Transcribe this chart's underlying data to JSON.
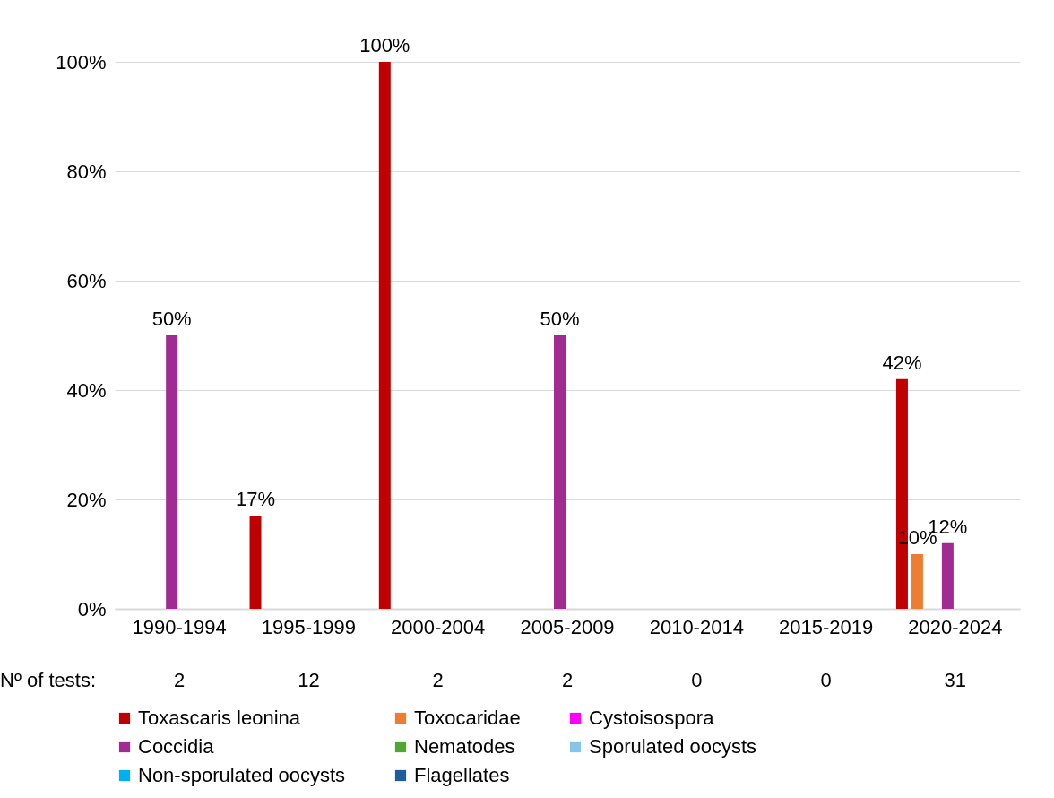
{
  "chart_data": {
    "type": "bar",
    "categories": [
      "1990-1994",
      "1995-1999",
      "2000-2004",
      "2005-2009",
      "2010-2014",
      "2015-2019",
      "2020-2024"
    ],
    "series": [
      {
        "name": "Toxascaris leonina",
        "color": "#c00000",
        "values": [
          null,
          17,
          100,
          null,
          null,
          null,
          42
        ]
      },
      {
        "name": "Toxocaridae",
        "color": "#ed7d31",
        "values": [
          null,
          null,
          null,
          null,
          null,
          null,
          10
        ]
      },
      {
        "name": "Cystoisospora",
        "color": "#ff00ff",
        "values": [
          null,
          null,
          null,
          null,
          null,
          null,
          null
        ]
      },
      {
        "name": "Coccidia",
        "color": "#a02b93",
        "values": [
          50,
          null,
          null,
          50,
          null,
          null,
          12
        ]
      },
      {
        "name": "Nematodes",
        "color": "#4ea72e",
        "values": [
          null,
          null,
          null,
          null,
          null,
          null,
          null
        ]
      },
      {
        "name": "Sporulated oocysts",
        "color": "#85c6e8",
        "values": [
          null,
          null,
          null,
          null,
          null,
          null,
          null
        ]
      },
      {
        "name": "Non-sporulated oocysts",
        "color": "#00b0f0",
        "values": [
          null,
          null,
          null,
          null,
          null,
          null,
          null
        ]
      },
      {
        "name": "Flagellates",
        "color": "#1f5c99",
        "values": [
          null,
          null,
          null,
          null,
          null,
          null,
          null
        ]
      }
    ],
    "ylim": [
      0,
      100
    ],
    "yticks": [
      {
        "value": 0,
        "label": "0%"
      },
      {
        "value": 20,
        "label": "20%"
      },
      {
        "value": 40,
        "label": "40%"
      },
      {
        "value": 60,
        "label": "60%"
      },
      {
        "value": 80,
        "label": "80%"
      },
      {
        "value": 100,
        "label": "100%"
      }
    ],
    "grid": "y",
    "legend": "bottom",
    "value_labels": [
      [
        null,
        "17%",
        "100%",
        null,
        null,
        null,
        "42%"
      ],
      [
        null,
        null,
        null,
        null,
        null,
        null,
        "10%"
      ],
      [
        null,
        null,
        null,
        null,
        null,
        null,
        null
      ],
      [
        "50%",
        null,
        null,
        "50%",
        null,
        null,
        "12%"
      ],
      [
        null,
        null,
        null,
        null,
        null,
        null,
        null
      ],
      [
        null,
        null,
        null,
        null,
        null,
        null,
        null
      ],
      [
        null,
        null,
        null,
        null,
        null,
        null,
        null
      ],
      [
        null,
        null,
        null,
        null,
        null,
        null,
        null
      ]
    ],
    "annotations": [
      "Nº of tests:",
      "2",
      "12",
      "2",
      "2",
      "0",
      "0",
      "31"
    ]
  }
}
